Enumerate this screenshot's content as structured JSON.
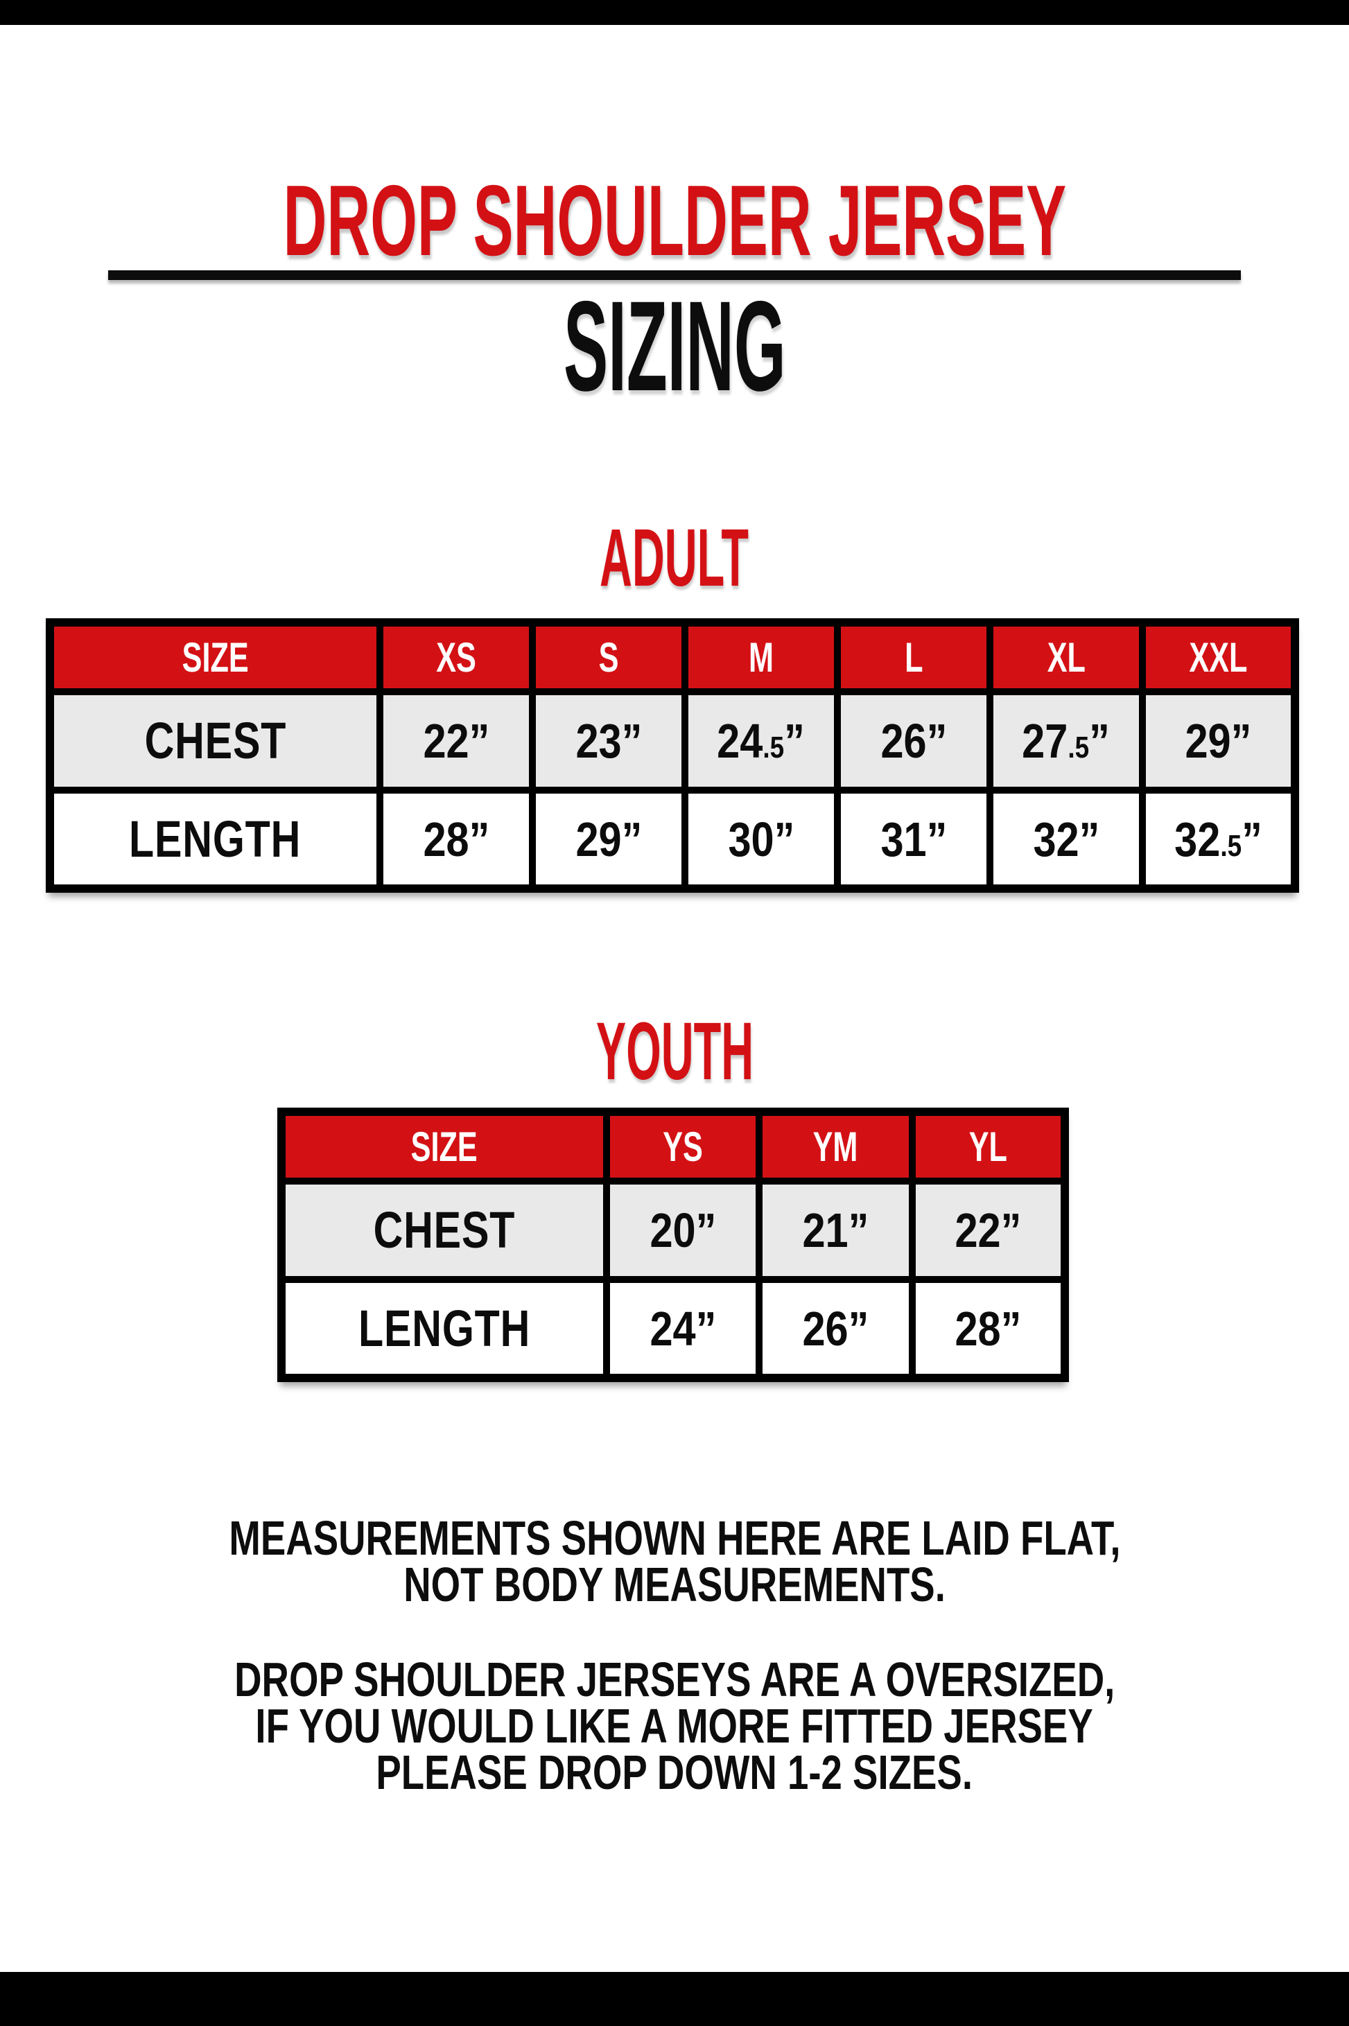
{
  "header": {
    "title": "DROP SHOULDER JERSEY",
    "subtitle": "SIZING"
  },
  "sections": {
    "adult": {
      "heading": "ADULT",
      "columns": [
        "SIZE",
        "XS",
        "S",
        "M",
        "L",
        "XL",
        "XXL"
      ],
      "rows": [
        {
          "label": "CHEST",
          "values": [
            "22”",
            "23”",
            "24.5”",
            "26”",
            "27.5”",
            "29”"
          ]
        },
        {
          "label": "LENGTH",
          "values": [
            "28”",
            "29”",
            "30”",
            "31”",
            "32”",
            "32.5”"
          ]
        }
      ]
    },
    "youth": {
      "heading": "YOUTH",
      "columns": [
        "SIZE",
        "YS",
        "YM",
        "YL"
      ],
      "rows": [
        {
          "label": "CHEST",
          "values": [
            "20”",
            "21”",
            "22”"
          ]
        },
        {
          "label": "LENGTH",
          "values": [
            "24”",
            "26”",
            "28”"
          ]
        }
      ]
    }
  },
  "notes": [
    {
      "lines": [
        "MEASUREMENTS SHOWN HERE ARE LAID FLAT,",
        "NOT BODY MEASUREMENTS."
      ]
    },
    {
      "lines": [
        "DROP SHOULDER JERSEYS ARE A OVERSIZED,",
        "IF YOU WOULD LIKE A MORE FITTED JERSEY",
        "PLEASE DROP DOWN 1-2 SIZES."
      ]
    }
  ],
  "colors": {
    "accent_red": "#d31115",
    "row_gray": "#e9e9e9",
    "bar_black": "#000000"
  }
}
